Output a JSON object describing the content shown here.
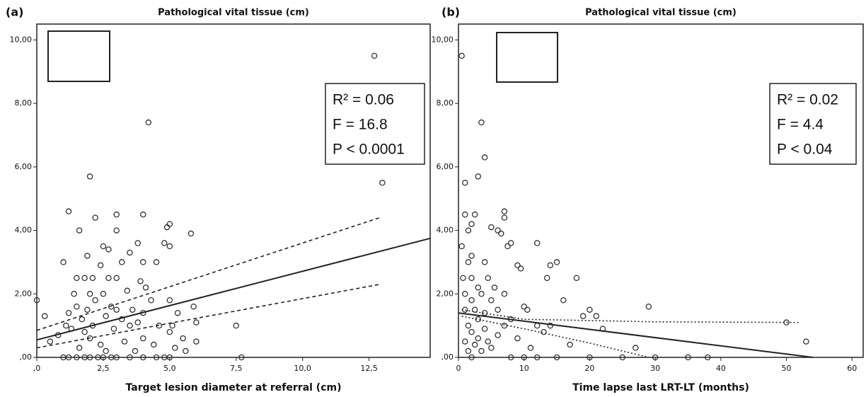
{
  "chart_data": [
    {
      "type": "scatter",
      "panel": "(a)",
      "title": "Pathological vital tissue (cm)",
      "x_label": "Target lesion diameter at referral (cm)",
      "xlim": [
        0,
        14.8
      ],
      "ylim": [
        0,
        10.5
      ],
      "xticks": [
        {
          "value": 0,
          "label": ",0"
        },
        {
          "value": 2.5,
          "label": "2,5"
        },
        {
          "value": 5,
          "label": "5,0"
        },
        {
          "value": 7.5,
          "label": "7,5"
        },
        {
          "value": 10,
          "label": "10,0"
        },
        {
          "value": 12.5,
          "label": "12,5"
        }
      ],
      "yticks": [
        {
          "value": 0,
          "label": ",00"
        },
        {
          "value": 2,
          "label": "2,00"
        },
        {
          "value": 4,
          "label": "4,00"
        },
        {
          "value": 6,
          "label": "6,00"
        },
        {
          "value": 8,
          "label": "8,00"
        },
        {
          "value": 10,
          "label": "10,00"
        }
      ],
      "annotations": [
        "R² = 0.06",
        "F = 16.8",
        "P < 0.0001"
      ],
      "color": "#333333",
      "x": [
        0,
        0.3,
        0.5,
        0.8,
        1,
        1,
        1.1,
        1.2,
        1.2,
        1.3,
        1.4,
        1.5,
        1.5,
        1.6,
        1.6,
        1.7,
        1.8,
        1.8,
        1.9,
        1.9,
        2,
        2,
        2,
        2.1,
        2.1,
        2.2,
        2.2,
        2.3,
        2.4,
        2.4,
        2.5,
        2.5,
        2.6,
        2.6,
        2.7,
        2.7,
        2.8,
        2.9,
        3,
        3,
        3,
        3,
        3,
        3.2,
        3.2,
        3.3,
        3.4,
        3.5,
        3.5,
        3.6,
        3.7,
        3.8,
        3.8,
        3.9,
        4,
        4,
        4,
        4,
        4.1,
        4.2,
        4.3,
        4.4,
        4.5,
        4.5,
        4.6,
        4.8,
        4.9,
        5,
        5,
        5,
        5,
        5.1,
        5.2,
        5.3,
        5.5,
        5.6,
        5.8,
        5.9,
        6,
        6,
        7.5,
        7.7,
        12.7,
        13,
        1.2,
        1.5,
        1.8,
        2,
        2.5,
        2.8,
        3.5,
        4,
        4.8,
        5
      ],
      "y": [
        1.8,
        1.3,
        0.5,
        0.7,
        3,
        0,
        1,
        4.6,
        1.4,
        0.9,
        2,
        2.5,
        1.6,
        4,
        0.3,
        1.2,
        2.5,
        0.8,
        3.2,
        1.5,
        5.7,
        2,
        0.6,
        2.5,
        1,
        4.4,
        1.8,
        0,
        2.9,
        0.4,
        3.5,
        2,
        1.3,
        0.2,
        3.4,
        2.5,
        1.6,
        0.9,
        4.5,
        4,
        2.5,
        1.5,
        0,
        3,
        1.2,
        0.5,
        2.1,
        3.3,
        1,
        1.5,
        0.2,
        3.6,
        1.1,
        2.4,
        4.5,
        3,
        1.4,
        0.6,
        2.2,
        7.4,
        1.8,
        0.4,
        3,
        0,
        1,
        3.6,
        4.1,
        4.2,
        3.5,
        1.8,
        0.8,
        1,
        0.3,
        1.4,
        0.6,
        0.2,
        3.9,
        1.6,
        1.1,
        0.5,
        1,
        0,
        9.5,
        5.5,
        0,
        0,
        0,
        0,
        0,
        0,
        0,
        0,
        0,
        0
      ],
      "lines": [
        {
          "x": [
            0,
            14.8
          ],
          "y": [
            0.55,
            3.75
          ],
          "dash": "solid"
        },
        {
          "x": [
            0,
            12.9
          ],
          "y": [
            0.85,
            4.4
          ],
          "dash": "dashed"
        },
        {
          "x": [
            0,
            12.9
          ],
          "y": [
            0.3,
            2.3
          ],
          "dash": "dashed"
        }
      ]
    },
    {
      "type": "scatter",
      "panel": "(b)",
      "title": "Pathological vital tissue (cm)",
      "x_label": "Time lapse last LRT-LT (months)",
      "xlim": [
        0,
        61.7
      ],
      "ylim": [
        0,
        10.5
      ],
      "xticks": [
        0,
        10,
        20,
        30,
        40,
        50,
        60
      ],
      "yticks": [
        {
          "value": 0,
          "label": ",00"
        },
        {
          "value": 2,
          "label": "2,00"
        },
        {
          "value": 4,
          "label": "4,00"
        },
        {
          "value": 6,
          "label": "6,00"
        },
        {
          "value": 8,
          "label": "8,00"
        },
        {
          "value": 10,
          "label": "10,00"
        }
      ],
      "annotations": [
        "R² = 0.02",
        "F = 4.4",
        "P < 0.04"
      ],
      "color": "#333333",
      "x": [
        0.5,
        1,
        1,
        1.5,
        2,
        2,
        2.5,
        3,
        3.5,
        4,
        4,
        5,
        6,
        6.5,
        7,
        7,
        7.5,
        8,
        9,
        9.5,
        12,
        13.5,
        14,
        15,
        18,
        19,
        20,
        21,
        29,
        27,
        30,
        35,
        38,
        50,
        53,
        0.5,
        0.7,
        1,
        1,
        1,
        1.5,
        1.5,
        1.5,
        2,
        2,
        2,
        2,
        2.5,
        2.5,
        3,
        3,
        3,
        3.5,
        3.5,
        4,
        4,
        4.5,
        4.5,
        5,
        5,
        5.5,
        6,
        6,
        7,
        7,
        8,
        8,
        9,
        10,
        10,
        10.5,
        11,
        12,
        12,
        13,
        14,
        15,
        16,
        17,
        20,
        22,
        25
      ],
      "y": [
        9.5,
        5.5,
        4.5,
        4,
        4.2,
        3.2,
        4.5,
        5.7,
        7.4,
        6.3,
        3,
        4.1,
        4,
        3.9,
        4.6,
        4.4,
        3.5,
        3.6,
        2.9,
        2.8,
        3.6,
        2.5,
        2.9,
        3,
        2.5,
        1.3,
        1.5,
        1.3,
        1.6,
        0.3,
        0,
        0,
        0,
        1.1,
        0.5,
        3.5,
        2.5,
        2,
        1.5,
        0.5,
        3,
        1,
        0.2,
        2.5,
        1.8,
        0.8,
        0,
        1.5,
        0.4,
        2.2,
        1.2,
        0.6,
        2,
        0.2,
        1.4,
        0.9,
        2.5,
        0.5,
        1.8,
        0.3,
        2.2,
        1.5,
        0.7,
        2,
        1,
        1.2,
        0,
        0.6,
        1.6,
        0,
        1.5,
        0.3,
        1,
        0,
        0.8,
        1,
        0,
        1.8,
        0.4,
        0,
        0.9,
        0
      ],
      "lines": [
        {
          "x": [
            0,
            54
          ],
          "y": [
            1.4,
            0
          ],
          "dash": "solid"
        },
        {
          "x": [
            0.5,
            10,
            30,
            52
          ],
          "y": [
            1.5,
            1.2,
            1.12,
            1.1
          ],
          "dash": "dotted"
        },
        {
          "x": [
            0.5,
            10,
            20,
            29
          ],
          "y": [
            1.3,
            0.9,
            0.45,
            0
          ],
          "dash": "dotted"
        }
      ]
    }
  ]
}
